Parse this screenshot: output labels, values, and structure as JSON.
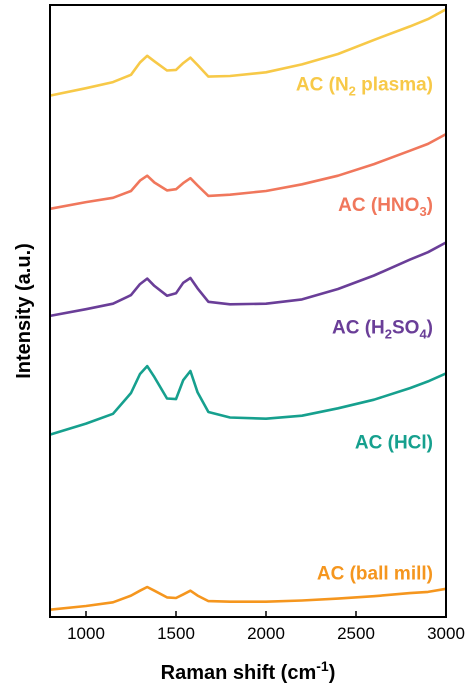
{
  "chart_data": {
    "type": "line",
    "title": "",
    "xlabel": "Raman shift (cm",
    "xlabel_sup": "-1",
    "xlabel_tail": ")",
    "ylabel": "Intensity (a.u.)",
    "xlim": [
      800,
      3000
    ],
    "ylim": [
      0,
      100
    ],
    "x_ticks": [
      1000,
      1500,
      2000,
      2500,
      3000
    ],
    "grid": false,
    "y_ticks_shown": false,
    "legend": "none",
    "series": [
      {
        "label_parts": [
          {
            "t": "AC (N"
          },
          {
            "t": "2",
            "sub": true
          },
          {
            "t": " plasma)"
          }
        ],
        "color": "#F7C948",
        "x": [
          800,
          1000,
          1150,
          1250,
          1300,
          1340,
          1380,
          1450,
          1500,
          1540,
          1580,
          1620,
          1680,
          1800,
          2000,
          2200,
          2400,
          2600,
          2800,
          2900,
          3000
        ],
        "y": [
          85.2,
          86.4,
          87.4,
          88.6,
          90.6,
          91.7,
          90.8,
          89.3,
          89.4,
          90.5,
          91.4,
          90.2,
          88.3,
          88.4,
          89.0,
          90.3,
          92.0,
          94.3,
          96.5,
          97.7,
          99.3
        ]
      },
      {
        "label_parts": [
          {
            "t": "AC (HNO"
          },
          {
            "t": "3",
            "sub": true
          },
          {
            "t": ")"
          }
        ],
        "color": "#F0775C",
        "x": [
          800,
          1000,
          1150,
          1250,
          1300,
          1340,
          1380,
          1450,
          1500,
          1540,
          1580,
          1620,
          1680,
          1800,
          2000,
          2200,
          2400,
          2600,
          2800,
          2900,
          3000
        ],
        "y": [
          66.7,
          67.8,
          68.5,
          69.6,
          71.3,
          72.1,
          71.0,
          69.7,
          69.9,
          70.9,
          71.7,
          70.5,
          68.8,
          69.0,
          69.6,
          70.7,
          72.1,
          74.0,
          76.2,
          77.3,
          78.9
        ]
      },
      {
        "label_parts": [
          {
            "t": "AC (H"
          },
          {
            "t": "2",
            "sub": true
          },
          {
            "t": "SO"
          },
          {
            "t": "4",
            "sub": true
          },
          {
            "t": ")"
          }
        ],
        "color": "#6A3E98",
        "x": [
          800,
          1000,
          1150,
          1250,
          1300,
          1340,
          1380,
          1450,
          1500,
          1540,
          1580,
          1620,
          1680,
          1800,
          2000,
          2200,
          2400,
          2600,
          2800,
          2900,
          3000
        ],
        "y": [
          49.2,
          50.3,
          51.2,
          52.6,
          54.4,
          55.3,
          54.1,
          52.5,
          52.9,
          54.6,
          55.4,
          53.7,
          51.5,
          51.1,
          51.2,
          51.9,
          53.6,
          55.8,
          58.4,
          59.6,
          61.2
        ]
      },
      {
        "label_parts": [
          {
            "t": "AC (HCl)"
          }
        ],
        "color": "#16A08E",
        "x": [
          800,
          1000,
          1150,
          1250,
          1300,
          1340,
          1380,
          1450,
          1500,
          1540,
          1580,
          1620,
          1680,
          1800,
          2000,
          2200,
          2400,
          2600,
          2800,
          2900,
          3000
        ],
        "y": [
          29.8,
          31.6,
          33.2,
          36.6,
          39.7,
          41.0,
          39.2,
          35.7,
          35.6,
          38.7,
          40.2,
          36.7,
          33.5,
          32.6,
          32.4,
          32.9,
          34.1,
          35.5,
          37.4,
          38.5,
          39.8
        ]
      },
      {
        "label_parts": [
          {
            "t": "AC (ball mill)"
          }
        ],
        "color": "#F5961E",
        "x": [
          800,
          1000,
          1150,
          1250,
          1300,
          1340,
          1380,
          1450,
          1500,
          1540,
          1580,
          1620,
          1680,
          1800,
          2000,
          2200,
          2400,
          2600,
          2800,
          2900,
          3000
        ],
        "y": [
          1.2,
          1.8,
          2.4,
          3.5,
          4.3,
          4.9,
          4.3,
          3.2,
          3.1,
          3.7,
          4.3,
          3.5,
          2.6,
          2.5,
          2.5,
          2.7,
          3.0,
          3.4,
          3.9,
          4.1,
          4.6
        ]
      }
    ]
  }
}
